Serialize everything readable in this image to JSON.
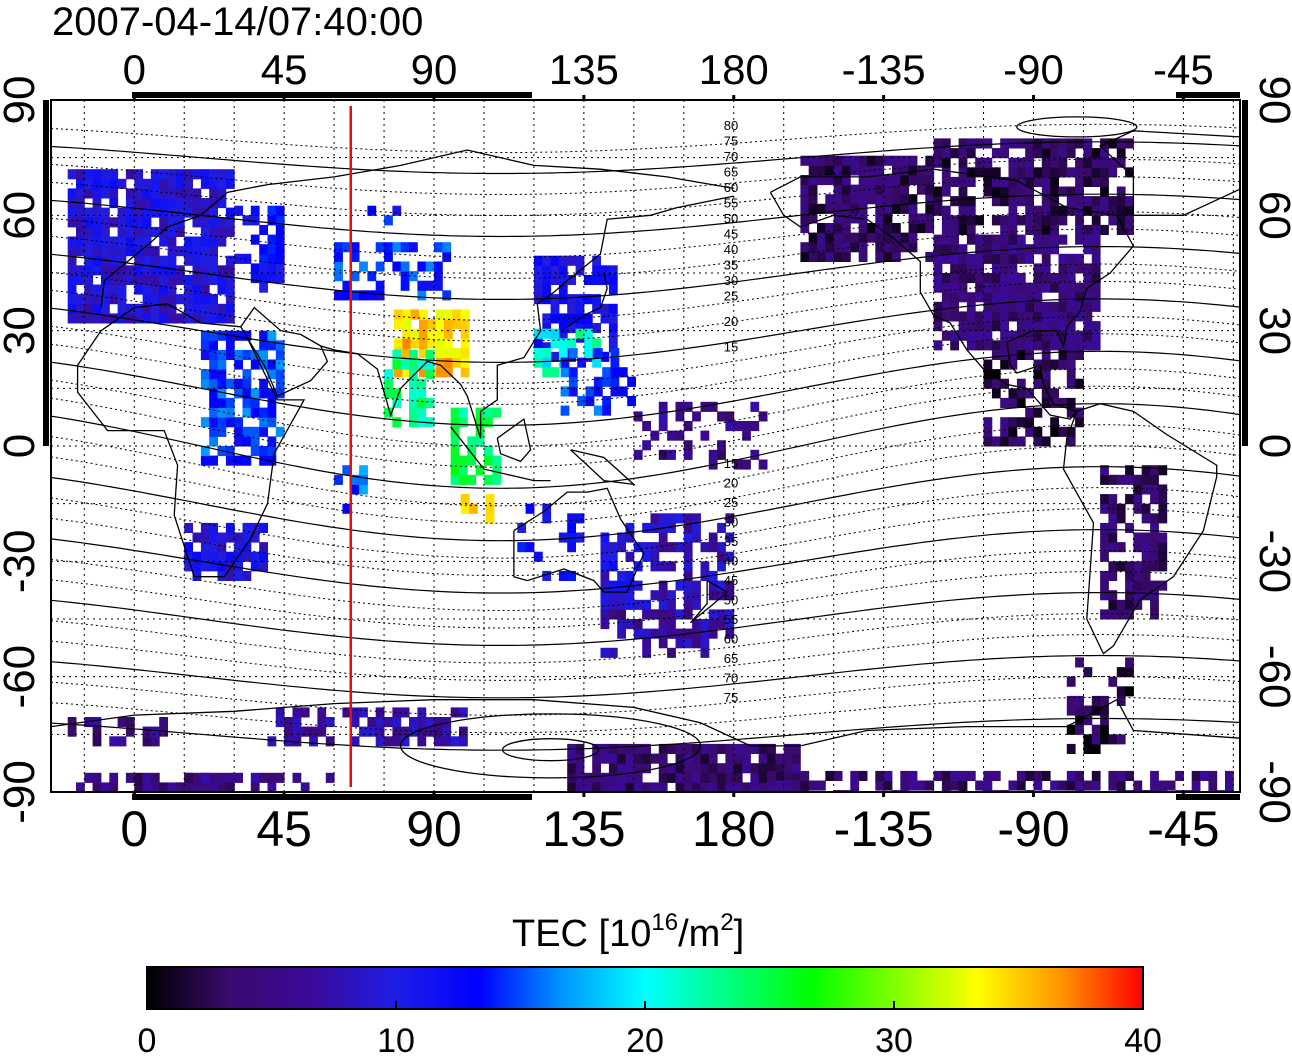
{
  "timestamp": "2007-04-14/07:40:00",
  "map": {
    "top_lon_labels": [
      "0",
      "45",
      "90",
      "135",
      "180",
      "-135",
      "-90",
      "-45"
    ],
    "bottom_lon_labels": [
      "0",
      "45",
      "90",
      "135",
      "180",
      "-135",
      "-90",
      "-45"
    ],
    "left_lat_labels": [
      "90",
      "60",
      "30",
      "0",
      "-30",
      "-60",
      "-90"
    ],
    "right_lat_labels": [
      "90",
      "60",
      "30",
      "0",
      "-30",
      "-60",
      "-90"
    ],
    "meridian_marker_lon": 65,
    "contour_labels_north": [
      "80",
      "75",
      "70",
      "65",
      "60",
      "55",
      "50",
      "45",
      "40",
      "35",
      "30",
      "25",
      "20",
      "15"
    ],
    "contour_labels_south": [
      "15",
      "20",
      "25",
      "30",
      "35",
      "40",
      "45",
      "50",
      "55",
      "60",
      "65",
      "70",
      "75"
    ]
  },
  "colorbar": {
    "title_prefix": "TEC  [10",
    "title_exp": "16",
    "title_unit": "/m",
    "title_unit_exp": "2",
    "title_suffix": "]",
    "min": 0,
    "max": 40,
    "ticks": [
      "0",
      "10",
      "20",
      "30",
      "40"
    ],
    "colors": [
      "#000000",
      "#3a0a6e",
      "#3a0a9a",
      "#1e1ee6",
      "#0000ff",
      "#0096ff",
      "#00ffff",
      "#00ff80",
      "#00ff00",
      "#80ff00",
      "#ffff00",
      "#ff9600",
      "#ff0000"
    ]
  }
}
